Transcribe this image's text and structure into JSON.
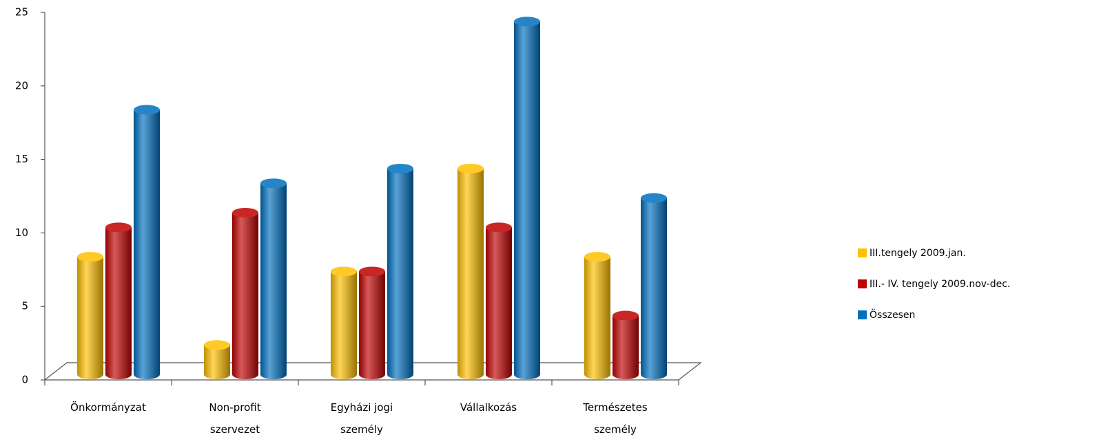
{
  "chart_data": {
    "type": "bar",
    "categories": [
      [
        "Önkormányzat"
      ],
      [
        "Non-profit",
        "szervezet"
      ],
      [
        "Egyházi jogi",
        "személy"
      ],
      [
        "Vállalkozás"
      ],
      [
        "Természetes",
        "személy"
      ]
    ],
    "series": [
      {
        "name": "III.tengely 2009.jan.",
        "color": "#ffc000",
        "values": [
          8,
          2,
          7,
          14,
          8
        ]
      },
      {
        "name": "III.- IV. tengely 2009.nov-dec.",
        "color": "#c00000",
        "values": [
          10,
          11,
          7,
          10,
          4
        ]
      },
      {
        "name": "Összesen",
        "color": "#0070c0",
        "values": [
          18,
          13,
          14,
          24,
          12
        ]
      }
    ],
    "ylim": [
      0,
      25
    ],
    "yticks": [
      0,
      5,
      10,
      15,
      20,
      25
    ]
  }
}
